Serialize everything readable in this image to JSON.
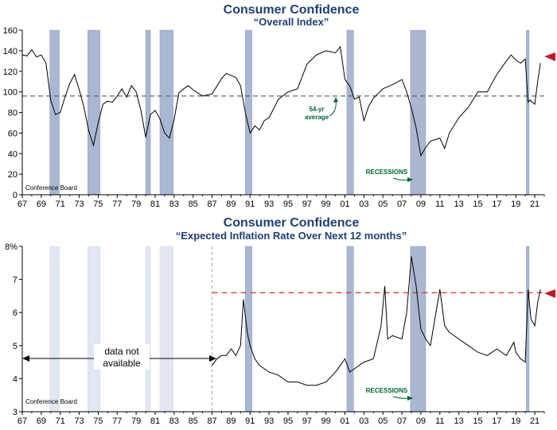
{
  "chart_data": [
    {
      "type": "line",
      "title": "Consumer Confidence",
      "subtitle": "“Overall Index”",
      "source": "Conference Board",
      "ylim": [
        0,
        160
      ],
      "yticks": [
        "0",
        "20",
        "40",
        "60",
        "80",
        "100",
        "120",
        "140",
        "160"
      ],
      "xticks": [
        "67",
        "69",
        "71",
        "73",
        "75",
        "77",
        "79",
        "81",
        "83",
        "85",
        "87",
        "89",
        "91",
        "93",
        "95",
        "97",
        "99",
        "01",
        "03",
        "05",
        "07",
        "09",
        "11",
        "13",
        "15",
        "17",
        "19",
        "21"
      ],
      "xlim": [
        1967,
        2022
      ],
      "average": {
        "value": 96,
        "label_line1": "54-yr",
        "label_line2": "average"
      },
      "recession_label": "RECESSIONS",
      "recessions": [
        [
          1969.9,
          1970.9
        ],
        [
          1973.9,
          1975.2
        ],
        [
          1980.0,
          1980.5
        ],
        [
          1981.5,
          1982.9
        ],
        [
          1990.5,
          1991.2
        ],
        [
          2001.2,
          2001.9
        ],
        [
          2007.9,
          2009.5
        ],
        [
          2020.1,
          2020.4
        ]
      ],
      "series": [
        {
          "x": [
            1967.0,
            1967.5,
            1968.0,
            1968.5,
            1969.0,
            1969.5,
            1970.0,
            1970.5,
            1971.0,
            1971.5,
            1972.0,
            1972.5,
            1973.0,
            1973.5,
            1974.0,
            1974.5,
            1975.0,
            1975.5,
            1976.0,
            1976.5,
            1977.0,
            1977.5,
            1978.0,
            1978.5,
            1979.0,
            1979.5,
            1980.0,
            1980.5,
            1981.0,
            1981.5,
            1982.0,
            1982.5,
            1983.0,
            1983.5,
            1984.0,
            1984.5,
            1985.0,
            1986.0,
            1987.0,
            1988.0,
            1988.5,
            1989.0,
            1989.5,
            1990.0,
            1990.5,
            1991.0,
            1991.5,
            1992.0,
            1992.5,
            1993.0,
            1994.0,
            1995.0,
            1996.0,
            1997.0,
            1998.0,
            1999.0,
            2000.0,
            2000.5,
            2001.0,
            2001.5,
            2002.0,
            2002.5,
            2003.0,
            2003.5,
            2004.0,
            2005.0,
            2006.0,
            2007.0,
            2007.5,
            2008.0,
            2008.5,
            2009.0,
            2009.5,
            2010.0,
            2011.0,
            2011.5,
            2012.0,
            2013.0,
            2014.0,
            2015.0,
            2016.0,
            2017.0,
            2018.0,
            2018.5,
            2019.0,
            2019.5,
            2020.0,
            2020.3,
            2020.5,
            2021.0,
            2021.3,
            2021.6
          ],
          "y": [
            136,
            135,
            141,
            134,
            136,
            128,
            92,
            78,
            80,
            95,
            108,
            117,
            102,
            85,
            62,
            48,
            70,
            88,
            91,
            90,
            96,
            103,
            95,
            106,
            100,
            82,
            56,
            78,
            82,
            74,
            60,
            55,
            73,
            99,
            103,
            106,
            102,
            96,
            98,
            113,
            118,
            116,
            114,
            106,
            80,
            60,
            67,
            63,
            72,
            75,
            93,
            100,
            103,
            127,
            136,
            140,
            138,
            144,
            112,
            106,
            93,
            95,
            72,
            86,
            94,
            103,
            107,
            112,
            100,
            84,
            65,
            38,
            46,
            52,
            55,
            45,
            60,
            75,
            85,
            100,
            100,
            117,
            130,
            136,
            131,
            128,
            132,
            90,
            92,
            88,
            110,
            128
          ]
        }
      ]
    },
    {
      "type": "line",
      "title": "Consumer Confidence",
      "subtitle": "“Expected Inflation Rate Over Next 12 months”",
      "source": "Conference Board",
      "ylim": [
        3,
        8
      ],
      "yticks": [
        "3",
        "4",
        "5",
        "6",
        "7",
        "8%"
      ],
      "xticks": [
        "67",
        "69",
        "71",
        "73",
        "75",
        "77",
        "79",
        "81",
        "83",
        "85",
        "87",
        "89",
        "91",
        "93",
        "95",
        "97",
        "99",
        "01",
        "03",
        "05",
        "07",
        "09",
        "11",
        "13",
        "15",
        "17",
        "19",
        "21"
      ],
      "xlim": [
        1967,
        2022
      ],
      "reference_line": 6.6,
      "no_data_label_line1": "data not",
      "no_data_label_line2": "available",
      "data_start": 1987.0,
      "recession_label": "RECESSIONS",
      "recessions": [
        [
          1969.9,
          1970.9
        ],
        [
          1973.9,
          1975.2
        ],
        [
          1980.0,
          1980.5
        ],
        [
          1981.5,
          1982.9
        ],
        [
          1990.5,
          1991.2
        ],
        [
          2001.2,
          2001.9
        ],
        [
          2007.9,
          2009.5
        ],
        [
          2020.1,
          2020.4
        ]
      ],
      "series": [
        {
          "x": [
            1987.0,
            1987.5,
            1988.0,
            1988.5,
            1989.0,
            1989.5,
            1990.0,
            1990.3,
            1990.7,
            1991.0,
            1991.5,
            1992.0,
            1993.0,
            1994.0,
            1995.0,
            1996.0,
            1997.0,
            1998.0,
            1999.0,
            2000.0,
            2000.5,
            2001.0,
            2001.5,
            2002.0,
            2003.0,
            2004.0,
            2004.8,
            2005.2,
            2005.5,
            2006.0,
            2007.0,
            2007.5,
            2008.0,
            2008.5,
            2009.0,
            2009.5,
            2010.0,
            2011.0,
            2011.5,
            2012.0,
            2013.0,
            2014.0,
            2015.0,
            2016.0,
            2017.0,
            2018.0,
            2018.8,
            2019.0,
            2019.5,
            2020.0,
            2020.3,
            2020.6,
            2021.0,
            2021.3,
            2021.6
          ],
          "y": [
            4.4,
            4.6,
            4.7,
            4.7,
            4.9,
            4.7,
            5.0,
            6.4,
            5.4,
            5.0,
            4.6,
            4.4,
            4.2,
            4.1,
            3.9,
            3.9,
            3.8,
            3.8,
            3.9,
            4.2,
            4.4,
            4.6,
            4.2,
            4.3,
            4.5,
            4.6,
            5.6,
            6.8,
            5.2,
            5.3,
            5.2,
            6.0,
            7.7,
            6.8,
            5.5,
            5.2,
            5.0,
            6.7,
            5.6,
            5.4,
            5.2,
            5.0,
            4.8,
            4.7,
            4.9,
            4.7,
            5.1,
            4.8,
            4.6,
            4.5,
            6.7,
            5.8,
            5.6,
            6.3,
            6.7
          ]
        }
      ]
    }
  ]
}
